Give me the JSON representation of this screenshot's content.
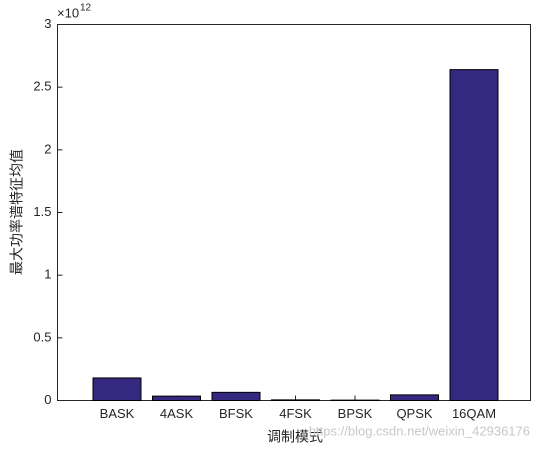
{
  "chart_data": {
    "type": "bar",
    "x_label": "调制模式",
    "y_label": "最大功率谱特征均值",
    "y_multiplier": {
      "base": "×10",
      "exponent": "12"
    },
    "categories": [
      "BASK",
      "4ASK",
      "BFSK",
      "4FSK",
      "BPSK",
      "QPSK",
      "16QAM"
    ],
    "values": [
      0.18,
      0.035,
      0.065,
      0.005,
      0.003,
      0.045,
      2.64
    ],
    "color": "#35297f",
    "ylim": [
      0,
      3
    ],
    "yticks": [
      0,
      0.5,
      1,
      1.5,
      2,
      2.5,
      3
    ],
    "grid": false
  },
  "watermark": "https://blog.csdn.net/weixin_42936176"
}
